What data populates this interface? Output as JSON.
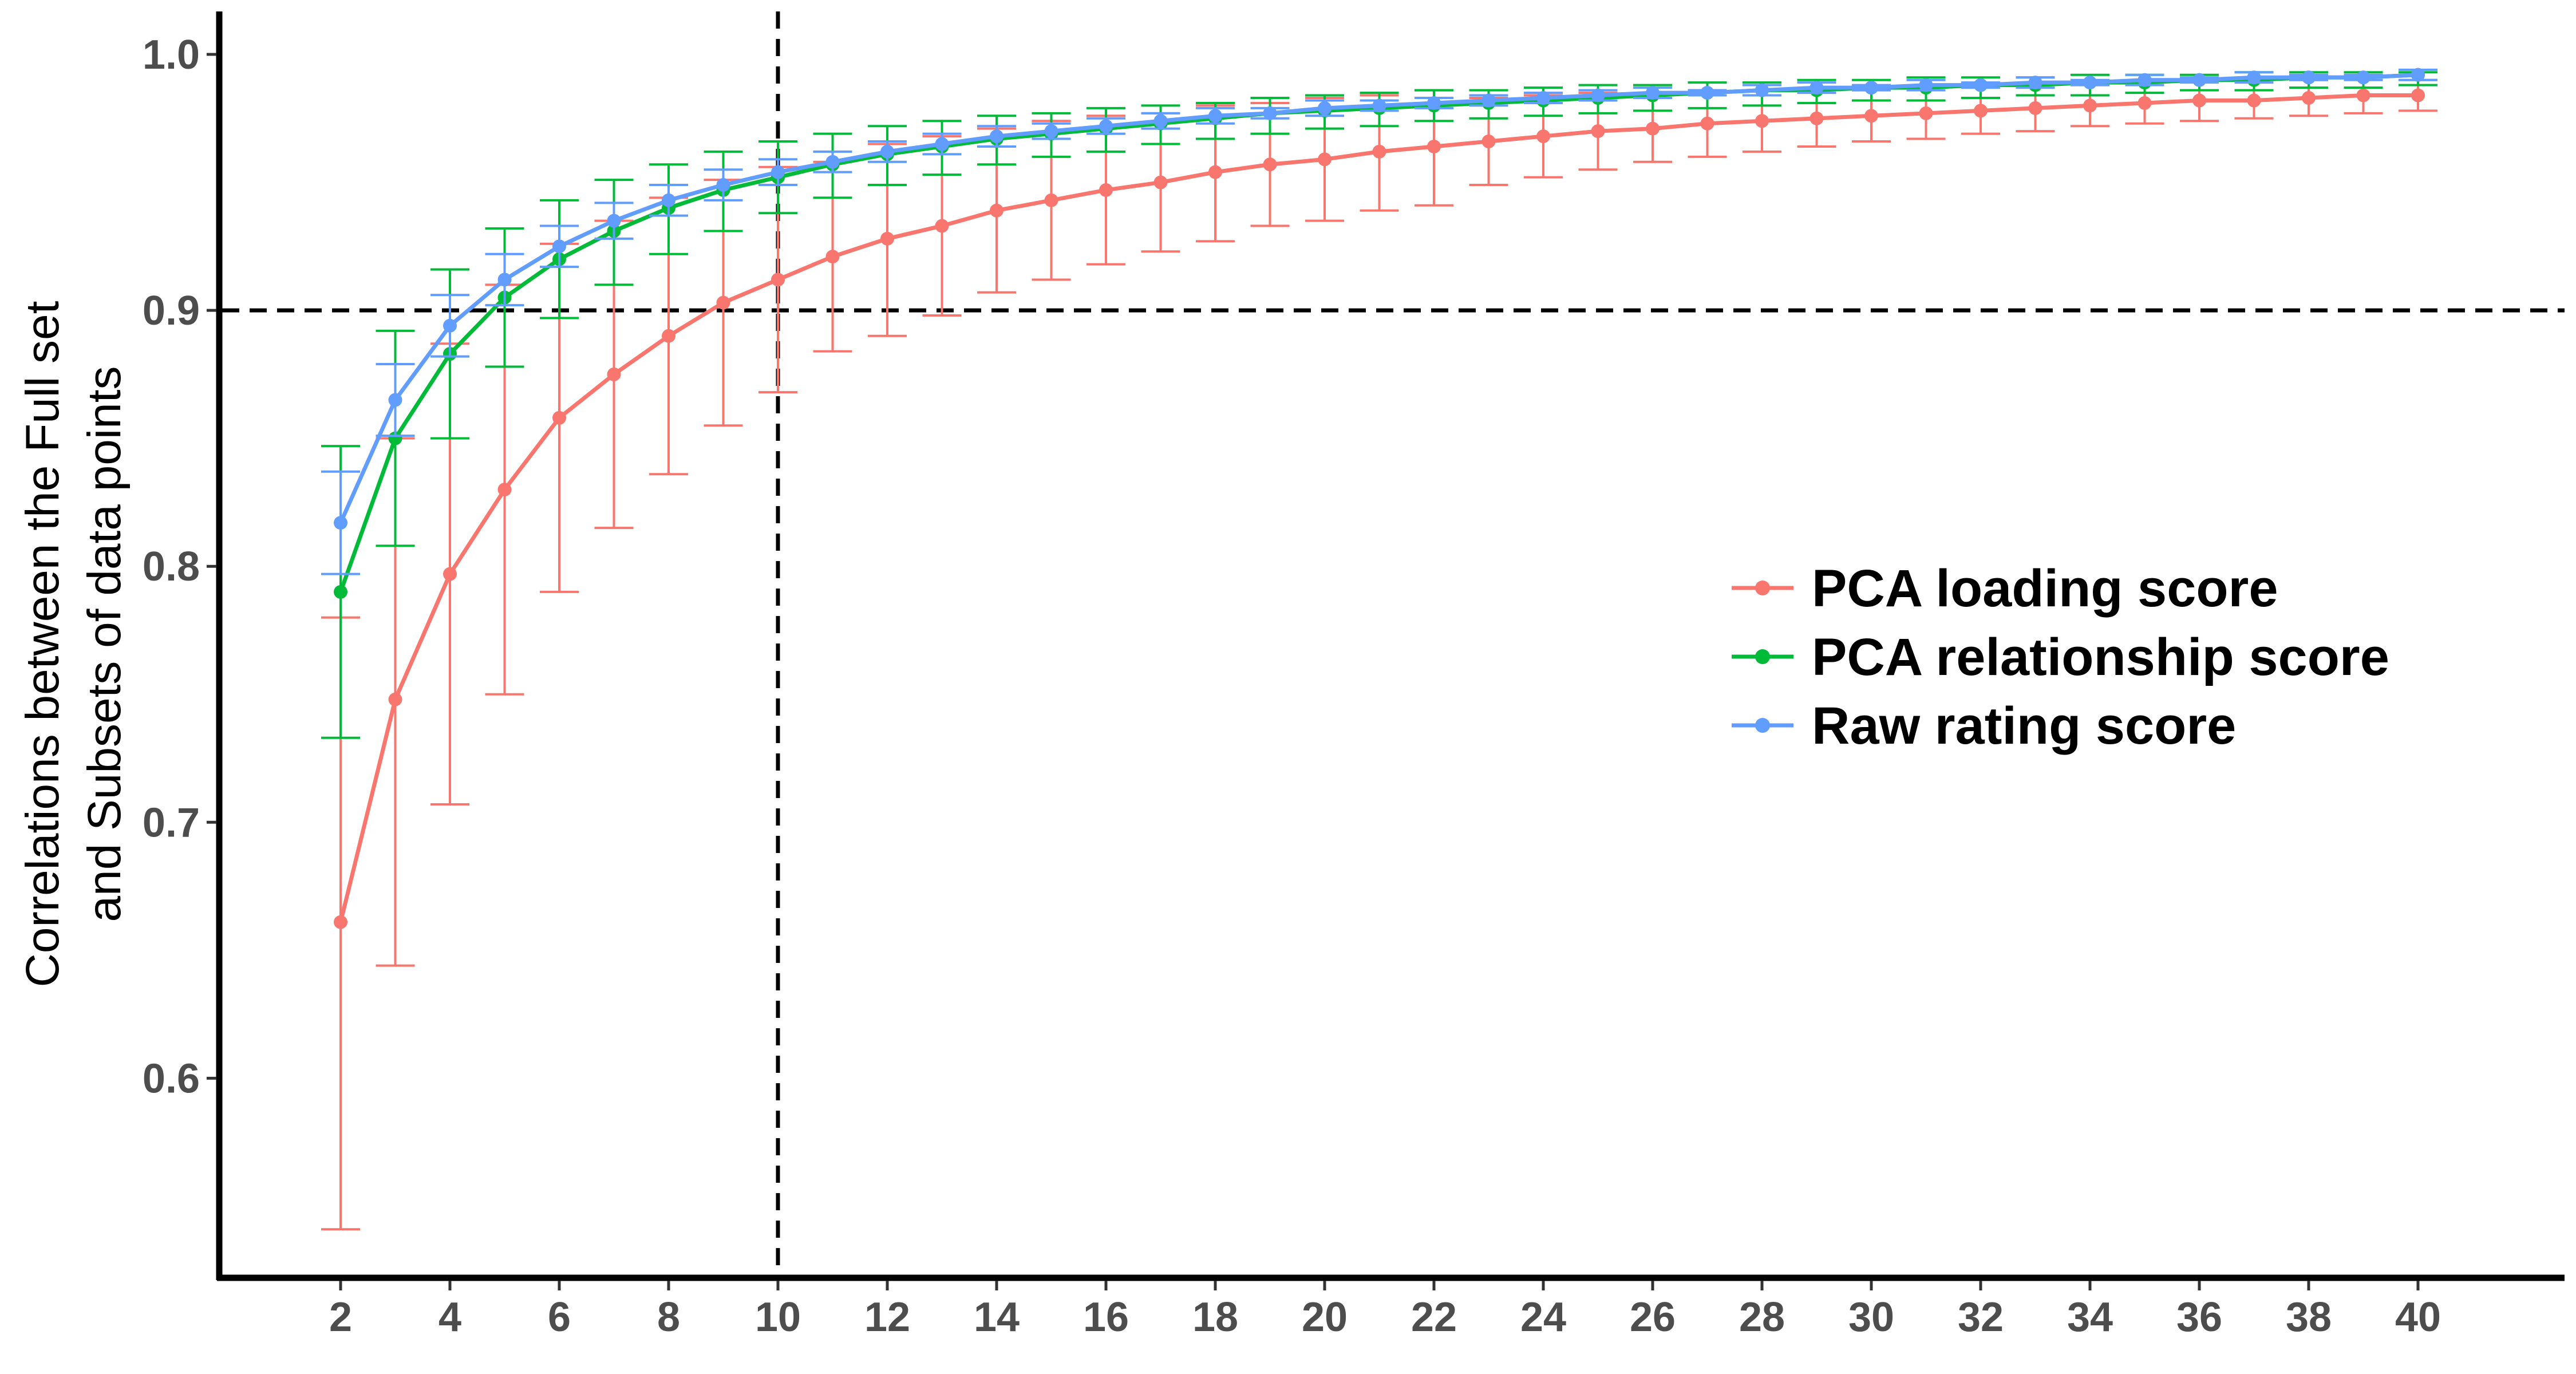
{
  "chart_data": {
    "type": "line",
    "title": "",
    "xlabel": "",
    "ylabel_lines": [
      "Correlations between the Full set",
      "and Subsets of data points"
    ],
    "xlim": [
      0,
      42
    ],
    "ylim": [
      0.525,
      1.016
    ],
    "x_ticks": [
      2,
      4,
      6,
      8,
      10,
      12,
      14,
      16,
      18,
      20,
      22,
      24,
      26,
      28,
      30,
      32,
      34,
      36,
      38,
      40
    ],
    "x_tick_labels": [
      "2",
      "4",
      "6",
      "8",
      "10",
      "12",
      "14",
      "16",
      "18",
      "20",
      "22",
      "24",
      "26",
      "28",
      "30",
      "32",
      "34",
      "36",
      "38",
      "40"
    ],
    "y_ticks": [
      0.6,
      0.7,
      0.8,
      0.9,
      1.0
    ],
    "y_tick_labels": [
      "0.6",
      "0.7",
      "0.8",
      "0.9",
      "1.0"
    ],
    "reference_lines": {
      "vertical_x": 10,
      "horizontal_y": 0.9,
      "style": "dashed"
    },
    "grid": false,
    "legend_position": "right",
    "x": [
      2,
      3,
      4,
      5,
      6,
      7,
      8,
      9,
      10,
      11,
      12,
      13,
      14,
      15,
      16,
      17,
      18,
      19,
      20,
      21,
      22,
      23,
      24,
      25,
      26,
      27,
      28,
      29,
      30,
      31,
      32,
      33,
      34,
      35,
      36,
      37,
      38,
      39,
      40
    ],
    "series": [
      {
        "name": "PCA loading score",
        "color": "#F8766D",
        "values": [
          0.661,
          0.748,
          0.797,
          0.83,
          0.858,
          0.875,
          0.89,
          0.903,
          0.912,
          0.921,
          0.928,
          0.933,
          0.939,
          0.943,
          0.947,
          0.95,
          0.954,
          0.957,
          0.959,
          0.962,
          0.964,
          0.966,
          0.968,
          0.97,
          0.971,
          0.973,
          0.974,
          0.975,
          0.976,
          0.977,
          0.978,
          0.979,
          0.98,
          0.981,
          0.982,
          0.982,
          0.983,
          0.984,
          0.984
        ],
        "lower": [
          0.541,
          0.644,
          0.707,
          0.75,
          0.79,
          0.815,
          0.836,
          0.855,
          0.868,
          0.884,
          0.89,
          0.898,
          0.907,
          0.912,
          0.918,
          0.923,
          0.927,
          0.933,
          0.935,
          0.939,
          0.941,
          0.949,
          0.952,
          0.955,
          0.958,
          0.96,
          0.962,
          0.964,
          0.966,
          0.967,
          0.969,
          0.97,
          0.972,
          0.973,
          0.974,
          0.975,
          0.976,
          0.977,
          0.978
        ],
        "upper": [
          0.78,
          0.85,
          0.887,
          0.91,
          0.926,
          0.935,
          0.944,
          0.951,
          0.956,
          0.958,
          0.965,
          0.968,
          0.971,
          0.974,
          0.976,
          0.977,
          0.98,
          0.981,
          0.983,
          0.984,
          0.986,
          0.983,
          0.984,
          0.985,
          0.984,
          0.986,
          0.986,
          0.986,
          0.986,
          0.987,
          0.987,
          0.988,
          0.988,
          0.989,
          0.99,
          0.989,
          0.99,
          0.991,
          0.99
        ]
      },
      {
        "name": "PCA relationship score",
        "color": "#00BA38",
        "values": [
          0.79,
          0.85,
          0.883,
          0.905,
          0.92,
          0.931,
          0.94,
          0.947,
          0.952,
          0.957,
          0.961,
          0.964,
          0.967,
          0.969,
          0.971,
          0.973,
          0.975,
          0.977,
          0.978,
          0.979,
          0.98,
          0.981,
          0.982,
          0.983,
          0.984,
          0.985,
          0.986,
          0.986,
          0.987,
          0.987,
          0.988,
          0.988,
          0.989,
          0.989,
          0.99,
          0.99,
          0.991,
          0.991,
          0.992
        ],
        "lower": [
          0.733,
          0.808,
          0.85,
          0.878,
          0.897,
          0.91,
          0.922,
          0.931,
          0.938,
          0.944,
          0.949,
          0.953,
          0.957,
          0.96,
          0.962,
          0.965,
          0.967,
          0.969,
          0.971,
          0.972,
          0.974,
          0.975,
          0.976,
          0.977,
          0.978,
          0.979,
          0.98,
          0.981,
          0.982,
          0.982,
          0.983,
          0.984,
          0.984,
          0.985,
          0.986,
          0.986,
          0.987,
          0.987,
          0.988
        ],
        "upper": [
          0.847,
          0.892,
          0.916,
          0.932,
          0.943,
          0.951,
          0.957,
          0.962,
          0.966,
          0.969,
          0.972,
          0.974,
          0.976,
          0.977,
          0.979,
          0.98,
          0.981,
          0.983,
          0.984,
          0.985,
          0.986,
          0.986,
          0.987,
          0.988,
          0.988,
          0.989,
          0.989,
          0.99,
          0.99,
          0.991,
          0.991,
          0.991,
          0.992,
          0.992,
          0.992,
          0.993,
          0.993,
          0.993,
          0.993
        ]
      },
      {
        "name": "Raw rating score",
        "color": "#619CFF",
        "values": [
          0.817,
          0.865,
          0.894,
          0.912,
          0.925,
          0.935,
          0.943,
          0.949,
          0.954,
          0.958,
          0.962,
          0.965,
          0.968,
          0.97,
          0.972,
          0.974,
          0.976,
          0.977,
          0.979,
          0.98,
          0.981,
          0.982,
          0.983,
          0.984,
          0.985,
          0.985,
          0.986,
          0.987,
          0.987,
          0.988,
          0.988,
          0.989,
          0.989,
          0.99,
          0.99,
          0.991,
          0.991,
          0.991,
          0.992
        ],
        "lower": [
          0.797,
          0.851,
          0.882,
          0.902,
          0.917,
          0.928,
          0.937,
          0.943,
          0.949,
          0.954,
          0.958,
          0.961,
          0.964,
          0.967,
          0.969,
          0.971,
          0.973,
          0.975,
          0.976,
          0.978,
          0.979,
          0.98,
          0.981,
          0.982,
          0.983,
          0.984,
          0.984,
          0.985,
          0.986,
          0.986,
          0.987,
          0.987,
          0.988,
          0.988,
          0.989,
          0.989,
          0.99,
          0.99,
          0.99
        ],
        "upper": [
          0.837,
          0.879,
          0.906,
          0.922,
          0.933,
          0.942,
          0.949,
          0.955,
          0.959,
          0.962,
          0.966,
          0.969,
          0.972,
          0.973,
          0.975,
          0.977,
          0.979,
          0.979,
          0.982,
          0.982,
          0.983,
          0.984,
          0.985,
          0.986,
          0.987,
          0.986,
          0.988,
          0.989,
          0.988,
          0.99,
          0.989,
          0.991,
          0.99,
          0.992,
          0.991,
          0.993,
          0.992,
          0.992,
          0.994
        ]
      }
    ]
  }
}
